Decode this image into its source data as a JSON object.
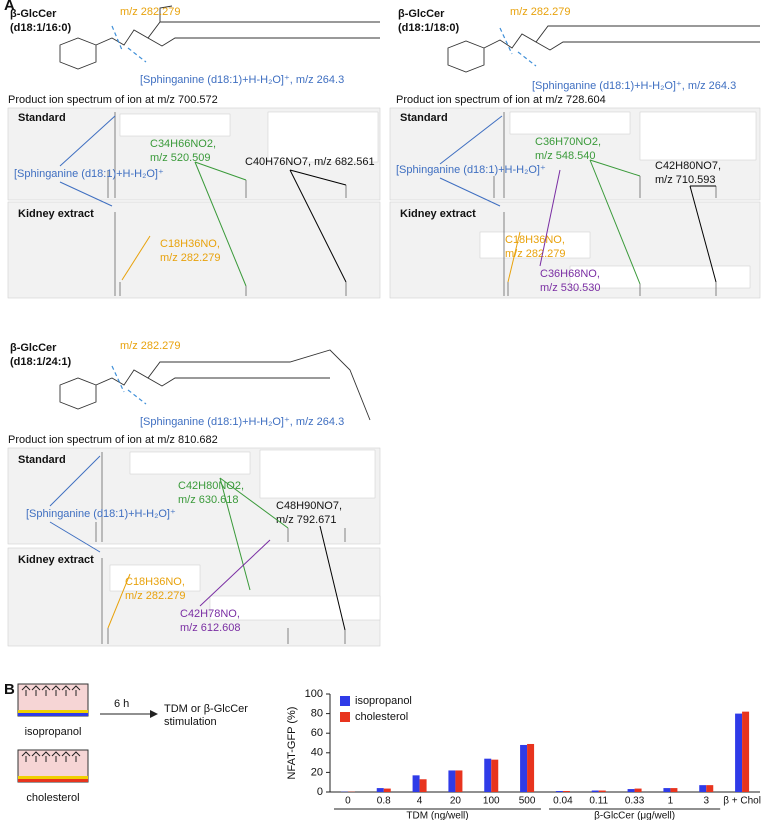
{
  "panel_a": {
    "label": "A",
    "panels": [
      {
        "compound": "β-GlcCer",
        "chain": "(d18:1/16:0)",
        "fragment_label": "m/z 282.279",
        "sphinganine_label": "[Sphinganine (d18:1)+H-H₂O]⁺, m/z 264.3",
        "spectrum_title": "Product ion spectrum of ion at m/z 700.572",
        "standard_label": "Standard",
        "kidney_label": "Kidney extract",
        "spectrum_sphinganine": "[Sphinganine (d18:1)+H-H₂O]⁺",
        "green": [
          "C34H66NO2,",
          "m/z 520.509"
        ],
        "black": [
          "C40H76NO7, m/z 682.561"
        ],
        "orange": [
          "C18H36NO,",
          "m/z 282.279"
        ]
      },
      {
        "compound": "β-GlcCer",
        "chain": "(d18:1/18:0)",
        "fragment_label": "m/z 282.279",
        "sphinganine_label": "[Sphinganine (d18:1)+H-H₂O]⁺, m/z 264.3",
        "spectrum_title": "Product ion spectrum of ion at m/z 728.604",
        "standard_label": "Standard",
        "kidney_label": "Kidney extract",
        "spectrum_sphinganine": "[Sphinganine (d18:1)+H-H₂O]⁺",
        "green": [
          "C36H70NO2,",
          "m/z 548.540"
        ],
        "black": [
          "C42H80NO7,",
          "m/z 710.593"
        ],
        "orange": [
          "C18H36NO,",
          "m/z 282.279"
        ],
        "purple": [
          "C36H68NO,",
          "m/z 530.530"
        ]
      },
      {
        "compound": "β-GlcCer",
        "chain": "(d18:1/24:1)",
        "fragment_label": "m/z 282.279",
        "sphinganine_label": "[Sphinganine (d18:1)+H-H₂O]⁺, m/z 264.3",
        "spectrum_title": "Product ion spectrum of ion at m/z 810.682",
        "standard_label": "Standard",
        "kidney_label": "Kidney extract",
        "spectrum_sphinganine": "[Sphinganine (d18:1)+H-H₂O]⁺",
        "green": [
          "C42H80NO2,",
          "m/z 630.618"
        ],
        "black": [
          "C48H90NO7,",
          "m/z 792.671"
        ],
        "orange": [
          "C18H36NO,",
          "m/z 282.279"
        ],
        "purple": [
          "C42H78NO,",
          "m/z 612.608"
        ]
      }
    ]
  },
  "panel_b": {
    "label": "B",
    "conditions": [
      "isopropanol",
      "cholesterol"
    ],
    "time": "6 h",
    "stimulation": [
      "TDM or β-GlcCer",
      "stimulation"
    ]
  },
  "chart_data": {
    "type": "bar",
    "ylabel": "NFAT-GFP (%)",
    "categories": [
      "0",
      "0.8",
      "4",
      "20",
      "100",
      "500",
      "0.04",
      "0.11",
      "0.33",
      "1",
      "3",
      "β + Chol"
    ],
    "groups": [
      "TDM (ng/well)",
      "β-GlcCer (μg/well)"
    ],
    "series": [
      {
        "name": "isopropanol",
        "color": "#2f3be8",
        "values": [
          0.3,
          4,
          17,
          22,
          34,
          48,
          1,
          1.5,
          3,
          4,
          7,
          80
        ]
      },
      {
        "name": "cholesterol",
        "color": "#e8341e",
        "values": [
          0.3,
          3.5,
          13,
          22,
          33,
          49,
          1,
          1.5,
          3.5,
          4,
          7,
          82
        ]
      }
    ],
    "ylim": [
      0,
      100
    ],
    "yticks": [
      0,
      20,
      40,
      60,
      80,
      100
    ],
    "grid": false,
    "legend": "top-left"
  }
}
